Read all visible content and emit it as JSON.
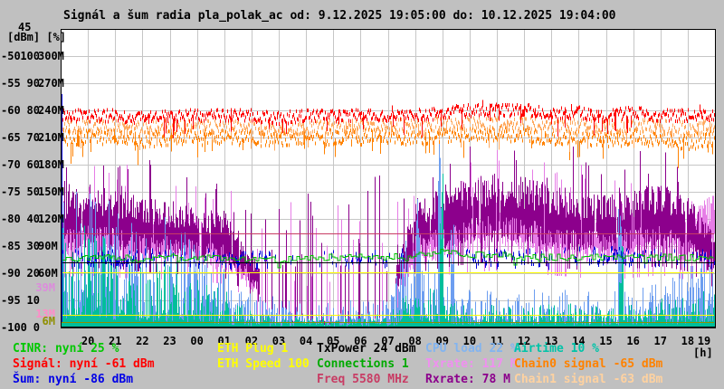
{
  "title": "Signál a šum radia pla_polak_ac od: 9.12.2025 19:05:00 do: 10.12.2025 19:04:00",
  "axes": {
    "top_value": "45",
    "unit_header": "[dBm] [%]",
    "hour_unit": "[h]",
    "dbm_ticks": [
      "-50",
      "-55",
      "-60",
      "-65",
      "-70",
      "-75",
      "-80",
      "-85",
      "-90",
      "-95",
      "-100"
    ],
    "pct_ticks": [
      "100",
      "90",
      "80",
      "70",
      "60",
      "50",
      "40",
      "30",
      "20",
      "10",
      "0"
    ],
    "rate_ticks": [
      "300M",
      "270M",
      "240M",
      "210M",
      "180M",
      "150M",
      "120M",
      "90M",
      "60M",
      "",
      ""
    ],
    "rate_marks": [
      {
        "label": "39M",
        "color": "#DC8CDC",
        "value_m": 44
      },
      {
        "label": "13M",
        "color": "#FF8CC8",
        "value_m": 15
      },
      {
        "label": "6M",
        "color": "#8F8F00",
        "value_m": 7
      }
    ],
    "hours": [
      "20",
      "21",
      "22",
      "23",
      "00",
      "01",
      "02",
      "03",
      "04",
      "05",
      "06",
      "07",
      "08",
      "09",
      "10",
      "11",
      "12",
      "13",
      "14",
      "15",
      "16",
      "17",
      "18",
      "19"
    ]
  },
  "legend": {
    "items": [
      {
        "id": "cinr",
        "text": "CINR: nyní 25 %",
        "color": "#00C800"
      },
      {
        "id": "signal",
        "text": "Signál: nyní -61 dBm",
        "color": "#FF0000"
      },
      {
        "id": "sum",
        "text": "Šum: nyní -86 dBm",
        "color": "#0000E6"
      },
      {
        "id": "eth-plug",
        "text": "ETH Plug 1",
        "color": "#FFFF00"
      },
      {
        "id": "eth-speed",
        "text": "ETH Speed 100",
        "color": "#FFFF00"
      },
      {
        "id": "txpower",
        "text": "TxPower 24 dBm",
        "color": "#000000"
      },
      {
        "id": "connections",
        "text": "Connections 1",
        "color": "#00AA00"
      },
      {
        "id": "freq",
        "text": "Freq 5580 MHz",
        "color": "#C83C64"
      },
      {
        "id": "cpu",
        "text": "CPU load 22 %",
        "color": "#82B4F0"
      },
      {
        "id": "txrate",
        "text": "Txrate: 117 M",
        "color": "#F08FF0"
      },
      {
        "id": "rxrate",
        "text": "Rxrate: 78 M",
        "color": "#8C008C"
      },
      {
        "id": "airtime",
        "text": "Airtime 10 %",
        "color": "#00C3A8"
      },
      {
        "id": "chain0",
        "text": "Chain0 signal -65 dBm",
        "color": "#FF8200"
      },
      {
        "id": "chain1",
        "text": "Chain1 signal -63 dBm",
        "color": "#FFD2A0"
      }
    ]
  },
  "chart_data": {
    "type": "line",
    "title": "Signál a šum radia pla_polak_ac od: 9.12.2025 19:05:00 do: 10.12.2025 19:04:00",
    "x_anchor_hours": [
      "19",
      "20",
      "21",
      "22",
      "23",
      "00",
      "01",
      "02",
      "03",
      "04",
      "05",
      "06",
      "07",
      "08",
      "09",
      "10",
      "11",
      "12",
      "13",
      "14",
      "15",
      "16",
      "17",
      "18",
      "19"
    ],
    "axis_ranges": {
      "dbm": [
        -100,
        -45
      ],
      "pct": [
        0,
        110
      ],
      "mbit": [
        0,
        330
      ]
    },
    "grid": true,
    "series": [
      {
        "name": "Txrate",
        "unit": "M",
        "now": 117,
        "color": "#E67DE6",
        "axis": "mbit",
        "style": "band",
        "spike_p": 0.13,
        "spike_range": [
          40,
          140
        ],
        "hourly": [
          100,
          105,
          100,
          98,
          95,
          92,
          88,
          55,
          8,
          6,
          8,
          6,
          20,
          90,
          105,
          110,
          115,
          110,
          105,
          100,
          95,
          100,
          105,
          95,
          117
        ]
      },
      {
        "name": "Rxrate",
        "unit": "M",
        "now": 78,
        "color": "#8C008C",
        "axis": "mbit",
        "style": "band",
        "spike_p": 0.18,
        "spike_range": [
          60,
          180
        ],
        "hourly": [
          115,
          120,
          118,
          112,
          108,
          104,
          100,
          65,
          10,
          10,
          13,
          10,
          30,
          110,
          120,
          128,
          132,
          128,
          122,
          116,
          112,
          118,
          124,
          112,
          78
        ]
      },
      {
        "name": "CPU load",
        "unit": "%",
        "now": 22,
        "color": "#6D9EF0",
        "axis": "pct",
        "style": "impulse",
        "spikes": [
          {
            "h": 1.5,
            "v": 36
          },
          {
            "h": 13.1,
            "v": 46
          },
          {
            "h": 13.9,
            "v": 62
          },
          {
            "h": 14.35,
            "v": 40
          },
          {
            "h": 20.5,
            "v": 60
          }
        ],
        "hourly": [
          30,
          32,
          27,
          22,
          26,
          18,
          14,
          7,
          6,
          6,
          6,
          6,
          7,
          28,
          10,
          8,
          8,
          8,
          8,
          8,
          8,
          9,
          11,
          14,
          22
        ]
      },
      {
        "name": "Airtime",
        "unit": "%",
        "now": 10,
        "color": "#00BE9B",
        "axis": "pct",
        "style": "impulse",
        "spikes": [
          {
            "h": 13.95,
            "v": 52
          },
          {
            "h": 20.55,
            "v": 28
          }
        ],
        "hourly": [
          22,
          24,
          18,
          14,
          17,
          12,
          9,
          3,
          2,
          2,
          2,
          2,
          3,
          12,
          6,
          5,
          5,
          5,
          5,
          5,
          4,
          5,
          6,
          8,
          10
        ]
      },
      {
        "name": "Šum",
        "unit": "dBm",
        "now": -86,
        "color": "#0000DC",
        "axis": "dbm",
        "style": "ticks",
        "jitter": 1.5,
        "hourly": [
          -87,
          -87,
          -87,
          -87,
          -87,
          -87,
          -87,
          -87,
          -87,
          -87,
          -87,
          -87,
          -87,
          -86.5,
          -86.5,
          -87,
          -87,
          -87,
          -87,
          -86.5,
          -86.5,
          -87,
          -87,
          -87,
          -87
        ]
      },
      {
        "name": "CINR",
        "unit": "%",
        "now": 25,
        "color": "#00C000",
        "axis": "pct",
        "style": "step-line",
        "jitter": 1.2,
        "hourly": [
          25,
          26,
          26,
          25,
          26,
          26,
          26,
          25,
          25,
          26,
          26,
          26,
          26,
          27,
          28,
          27,
          27,
          26,
          26,
          26,
          26,
          26,
          26,
          26,
          25
        ]
      },
      {
        "name": "Chain0 signal",
        "unit": "dBm",
        "now": -65,
        "color": "#FF8200",
        "axis": "dbm",
        "style": "noisy-line",
        "jitter": 1.4,
        "hourly": [
          -65,
          -65,
          -65,
          -65.5,
          -65,
          -65,
          -65,
          -65,
          -65.5,
          -65,
          -65,
          -65,
          -65,
          -65,
          -64.5,
          -64.5,
          -64.5,
          -64.5,
          -65,
          -65,
          -65.5,
          -65,
          -65.5,
          -66,
          -65
        ]
      },
      {
        "name": "Chain1 signal",
        "unit": "dBm",
        "now": -63,
        "color": "#FFAA5F",
        "axis": "dbm",
        "style": "noisy-line",
        "jitter": 1.3,
        "hourly": [
          -63,
          -63,
          -63,
          -63.5,
          -63,
          -63,
          -63,
          -63,
          -63.5,
          -63,
          -63,
          -63,
          -63,
          -63,
          -62.5,
          -62.5,
          -62.5,
          -62.5,
          -63,
          -63,
          -63.5,
          -63,
          -63,
          -63.5,
          -63
        ]
      },
      {
        "name": "Signál",
        "unit": "dBm",
        "now": -61,
        "color": "#FF0000",
        "axis": "dbm",
        "style": "noisy-line",
        "jitter": 1.1,
        "hourly": [
          -61,
          -61,
          -61,
          -61.5,
          -61,
          -61,
          -61,
          -61,
          -61.5,
          -61,
          -61,
          -61,
          -61,
          -61,
          -60.5,
          -60,
          -60,
          -60,
          -60.5,
          -60.5,
          -61,
          -60.5,
          -61,
          -61,
          -61
        ]
      }
    ],
    "flat_lines": [
      {
        "name": "Freq",
        "value_label": "5580 MHz",
        "color": "#C83C64",
        "axis": "mbit",
        "level": 104
      },
      {
        "name": "TxPower",
        "value_label": "24 dBm",
        "color": "#000000",
        "axis": "pct",
        "level": 24
      },
      {
        "name": "ETH Speed",
        "value_label": "100",
        "color": "#FFFF00",
        "axis": "pct",
        "level": 20.5
      },
      {
        "name": "rate-mark-13M",
        "value_label": "13M",
        "color": "#FFFF00",
        "axis": "mbit",
        "level": 14
      },
      {
        "name": "rate-mark-6M",
        "value_label": "6M",
        "color": "#8F8F00",
        "axis": "mbit",
        "level": 6.5
      }
    ],
    "startup_mark": {
      "color": "#0000DC",
      "axis": "dbm",
      "from": -57,
      "to": -99
    }
  }
}
